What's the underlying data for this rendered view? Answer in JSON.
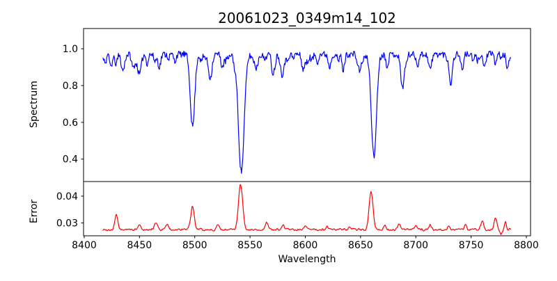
{
  "figure": {
    "title": "20061023_0349m14_102",
    "background_color": "#ffffff",
    "grid": false,
    "legend": null
  },
  "chart_data": [
    {
      "type": "line",
      "role": "spectrum-panel",
      "title": "20061023_0349m14_102",
      "xlabel": "",
      "ylabel": "Spectrum",
      "line_color": "#0000ff",
      "xlim": [
        8399.4,
        8803.8
      ],
      "ylim": [
        0.278,
        1.11
      ],
      "yticks": [
        {
          "v": 0.4,
          "label": "0.4"
        },
        {
          "v": 0.6,
          "label": "0.6"
        },
        {
          "v": 0.8,
          "label": "0.8"
        },
        {
          "v": 1.0,
          "label": "1.0"
        }
      ],
      "xticks_visible": false,
      "x_range": [
        8417,
        8786
      ],
      "sample_step": 0.58,
      "continuum": 0.97,
      "noise_amplitude": 0.018,
      "smooth_passes": 0,
      "rng_seed": 11,
      "weak_lines": {
        "count": 30,
        "depth_min": 0.015,
        "depth_max": 0.05,
        "sigma_min": 0.7,
        "sigma_max": 1.5
      },
      "absorption_lines": [
        {
          "center": 8419.0,
          "depth": 0.05,
          "sigma": 1.0
        },
        {
          "center": 8424.0,
          "depth": 0.06,
          "sigma": 1.2
        },
        {
          "center": 8429.0,
          "depth": 0.05,
          "sigma": 1.0
        },
        {
          "center": 8435.0,
          "depth": 0.09,
          "sigma": 1.5
        },
        {
          "center": 8444.0,
          "depth": 0.07,
          "sigma": 1.2
        },
        {
          "center": 8450.0,
          "depth": 0.11,
          "sigma": 1.6
        },
        {
          "center": 8457.0,
          "depth": 0.05,
          "sigma": 1.0
        },
        {
          "center": 8468.0,
          "depth": 0.07,
          "sigma": 1.2
        },
        {
          "center": 8482.0,
          "depth": 0.04,
          "sigma": 1.0
        },
        {
          "center": 8498.0,
          "depth": 0.395,
          "sigma": 2.0
        },
        {
          "center": 8506.0,
          "depth": 0.04,
          "sigma": 1.0
        },
        {
          "center": 8514.0,
          "depth": 0.13,
          "sigma": 1.6
        },
        {
          "center": 8525.0,
          "depth": 0.07,
          "sigma": 1.2
        },
        {
          "center": 8536.0,
          "depth": 0.04,
          "sigma": 1.0
        },
        {
          "center": 8542.1,
          "depth": 0.64,
          "sigma": 2.6
        },
        {
          "center": 8556.0,
          "depth": 0.07,
          "sigma": 1.3
        },
        {
          "center": 8570.0,
          "depth": 0.05,
          "sigma": 1.0
        },
        {
          "center": 8579.0,
          "depth": 0.11,
          "sigma": 1.5
        },
        {
          "center": 8598.0,
          "depth": 0.08,
          "sigma": 1.3
        },
        {
          "center": 8611.0,
          "depth": 0.04,
          "sigma": 1.0
        },
        {
          "center": 8622.0,
          "depth": 0.07,
          "sigma": 1.2
        },
        {
          "center": 8634.0,
          "depth": 0.05,
          "sigma": 1.0
        },
        {
          "center": 8648.0,
          "depth": 0.07,
          "sigma": 1.2
        },
        {
          "center": 8662.1,
          "depth": 0.56,
          "sigma": 2.3
        },
        {
          "center": 8674.0,
          "depth": 0.06,
          "sigma": 1.2
        },
        {
          "center": 8688.0,
          "depth": 0.15,
          "sigma": 1.7
        },
        {
          "center": 8702.0,
          "depth": 0.04,
          "sigma": 1.0
        },
        {
          "center": 8713.0,
          "depth": 0.08,
          "sigma": 1.4
        },
        {
          "center": 8732.0,
          "depth": 0.1,
          "sigma": 1.5
        },
        {
          "center": 8742.0,
          "depth": 0.06,
          "sigma": 1.2
        },
        {
          "center": 8752.0,
          "depth": 0.04,
          "sigma": 1.0
        },
        {
          "center": 8762.0,
          "depth": 0.07,
          "sigma": 1.2
        },
        {
          "center": 8772.0,
          "depth": 0.05,
          "sigma": 1.0
        },
        {
          "center": 8783.0,
          "depth": 0.08,
          "sigma": 1.2
        }
      ]
    },
    {
      "type": "line",
      "role": "error-panel",
      "title": "",
      "xlabel": "Wavelength",
      "ylabel": "Error",
      "line_color": "#ff0000",
      "xlim": [
        8399.4,
        8803.8
      ],
      "ylim": [
        0.0252,
        0.04545
      ],
      "yticks": [
        {
          "v": 0.03,
          "label": "0.03"
        },
        {
          "v": 0.04,
          "label": "0.04"
        }
      ],
      "xticks_visible": true,
      "xticks": [
        {
          "v": 8400,
          "label": "8400"
        },
        {
          "v": 8450,
          "label": "8450"
        },
        {
          "v": 8500,
          "label": "8500"
        },
        {
          "v": 8550,
          "label": "8550"
        },
        {
          "v": 8600,
          "label": "8600"
        },
        {
          "v": 8650,
          "label": "8650"
        },
        {
          "v": 8700,
          "label": "8700"
        },
        {
          "v": 8750,
          "label": "8750"
        },
        {
          "v": 8800,
          "label": "8800"
        }
      ],
      "x_range": [
        8417,
        8786
      ],
      "sample_step": 0.58,
      "baseline": 0.0275,
      "noise_amplitude": 0.0006,
      "smooth_passes": 1,
      "rng_seed": 99,
      "peaks": [
        {
          "center": 8429.0,
          "height": 0.006,
          "sigma": 1.2
        },
        {
          "center": 8450.0,
          "height": 0.002,
          "sigma": 1.0
        },
        {
          "center": 8465.0,
          "height": 0.003,
          "sigma": 1.2
        },
        {
          "center": 8475.0,
          "height": 0.0023,
          "sigma": 1.0
        },
        {
          "center": 8498.0,
          "height": 0.009,
          "sigma": 1.5
        },
        {
          "center": 8521.0,
          "height": 0.002,
          "sigma": 1.0
        },
        {
          "center": 8541.5,
          "height": 0.0175,
          "sigma": 1.8
        },
        {
          "center": 8565.0,
          "height": 0.003,
          "sigma": 1.2
        },
        {
          "center": 8580.0,
          "height": 0.002,
          "sigma": 1.0
        },
        {
          "center": 8600.0,
          "height": 0.0015,
          "sigma": 1.0
        },
        {
          "center": 8620.0,
          "height": 0.0013,
          "sigma": 1.0
        },
        {
          "center": 8640.0,
          "height": 0.0013,
          "sigma": 1.0
        },
        {
          "center": 8659.5,
          "height": 0.015,
          "sigma": 1.7
        },
        {
          "center": 8672.0,
          "height": 0.0017,
          "sigma": 1.0
        },
        {
          "center": 8685.0,
          "height": 0.0025,
          "sigma": 1.2
        },
        {
          "center": 8700.0,
          "height": 0.0015,
          "sigma": 1.0
        },
        {
          "center": 8713.0,
          "height": 0.0018,
          "sigma": 1.0
        },
        {
          "center": 8730.0,
          "height": 0.0017,
          "sigma": 1.0
        },
        {
          "center": 8745.0,
          "height": 0.002,
          "sigma": 1.0
        },
        {
          "center": 8760.0,
          "height": 0.0035,
          "sigma": 1.2
        },
        {
          "center": 8772.0,
          "height": 0.005,
          "sigma": 1.2
        },
        {
          "center": 8777.0,
          "height": -0.002,
          "sigma": 1.0
        },
        {
          "center": 8781.0,
          "height": 0.0035,
          "sigma": 0.8
        }
      ]
    }
  ]
}
